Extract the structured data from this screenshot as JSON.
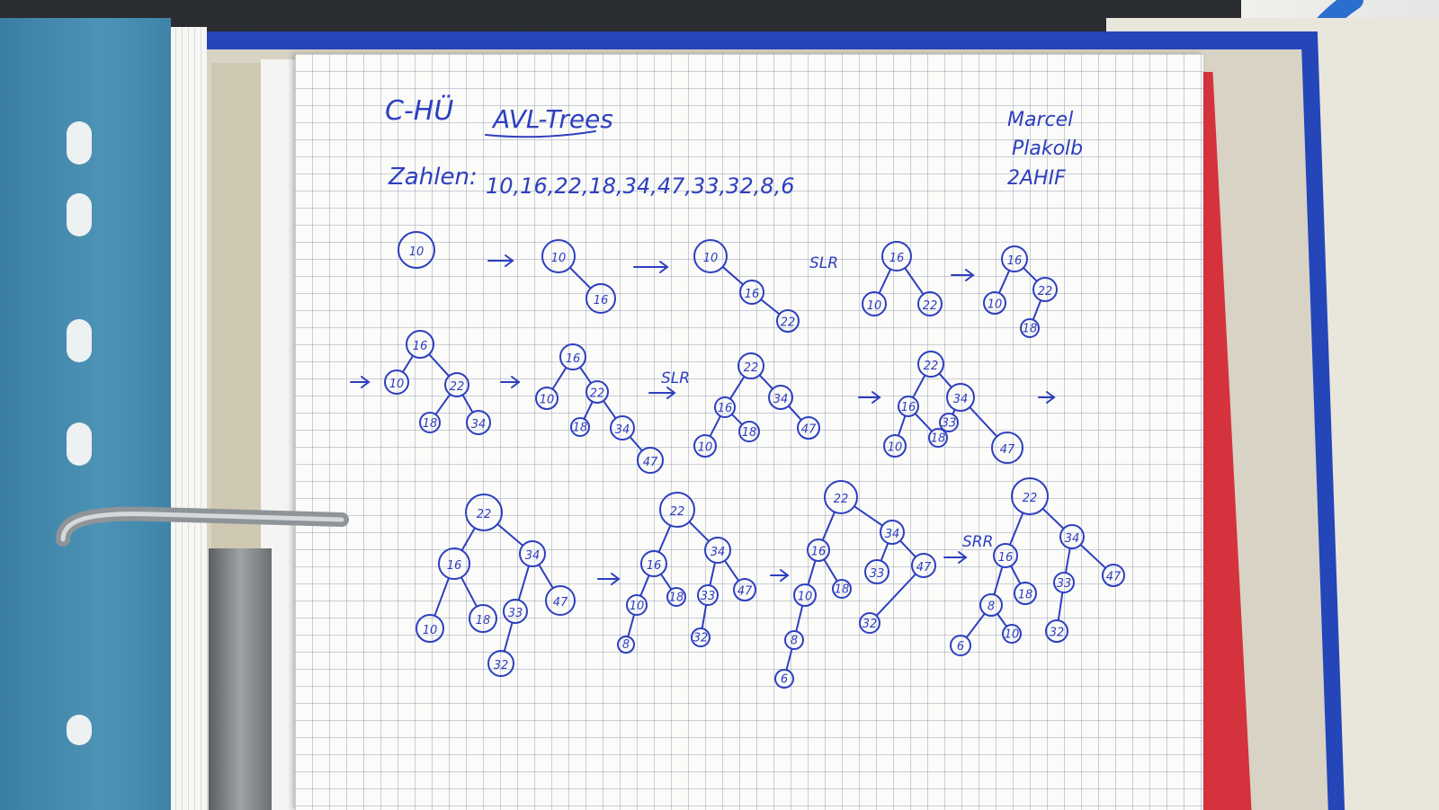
{
  "header": {
    "subject": "C-HÜ",
    "title": "AVL-Trees",
    "author_lines": [
      "Marcel",
      "Plakolb",
      "2AHIF"
    ]
  },
  "sequence": {
    "label": "Zahlen:",
    "numbers": "10,16,22,18,34,47,33,32,8,6"
  },
  "rotations": [
    "SLR",
    "SLR",
    "SRR"
  ],
  "nodes": [
    "10",
    "16",
    "22",
    "18",
    "34",
    "47",
    "33",
    "32",
    "8",
    "6"
  ],
  "colors": {
    "ink": "#2d3fbf",
    "folder": "#4d93b6",
    "binder": "#2446b8",
    "red_sheet": "#d4333e"
  }
}
